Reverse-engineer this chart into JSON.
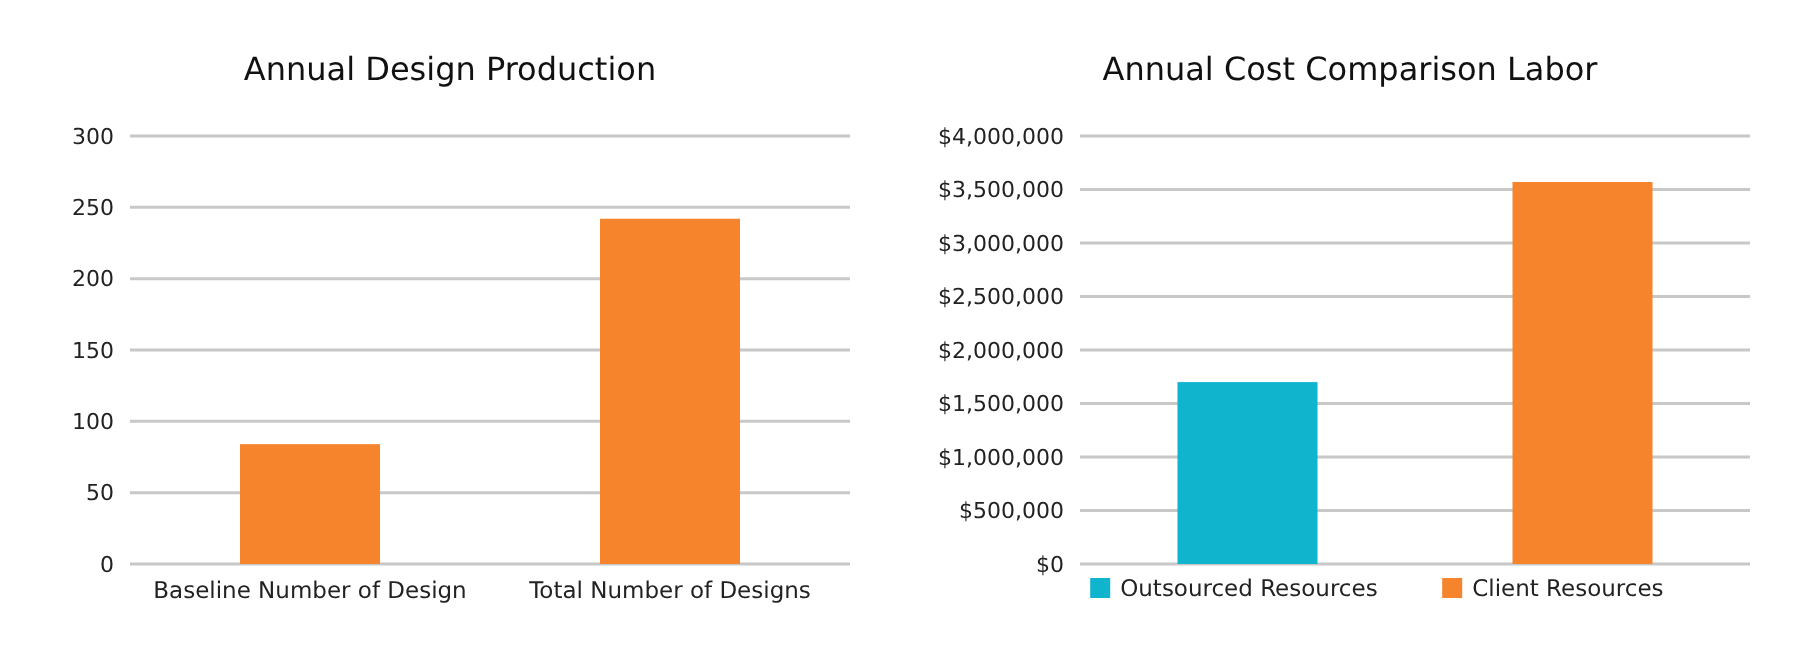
{
  "chart_data": [
    {
      "type": "bar",
      "title": "Annual Design Production",
      "categories": [
        "Baseline Number of Design",
        "Total Number of Designs"
      ],
      "values": [
        84,
        242
      ],
      "color": "#f6842c",
      "ylim": [
        0,
        300
      ],
      "yticks": [
        0,
        50,
        100,
        150,
        200,
        250,
        300
      ],
      "grid": "y"
    },
    {
      "type": "bar",
      "title": "Annual Cost Comparison Labor",
      "categories": [
        null,
        null
      ],
      "series": [
        {
          "name": "Outsourced Resources",
          "color": "#10b4cd",
          "values": [
            1700000,
            null
          ]
        },
        {
          "name": "Client Resources",
          "color": "#f6842c",
          "values": [
            null,
            3570000
          ]
        }
      ],
      "ylim": [
        0,
        4000000
      ],
      "yticks": [
        {
          "value": 0,
          "label": "$0"
        },
        {
          "value": 500000,
          "label": "$500,000"
        },
        {
          "value": 1000000,
          "label": "$1,000,000"
        },
        {
          "value": 1500000,
          "label": "$1,500,000"
        },
        {
          "value": 2000000,
          "label": "$2,000,000"
        },
        {
          "value": 2500000,
          "label": "$2,500,000"
        },
        {
          "value": 3000000,
          "label": "$3,000,000"
        },
        {
          "value": 3500000,
          "label": "$3,500,000"
        },
        {
          "value": 4000000,
          "label": "$4,000,000"
        }
      ],
      "grid": "y",
      "legend": "bottom"
    }
  ]
}
